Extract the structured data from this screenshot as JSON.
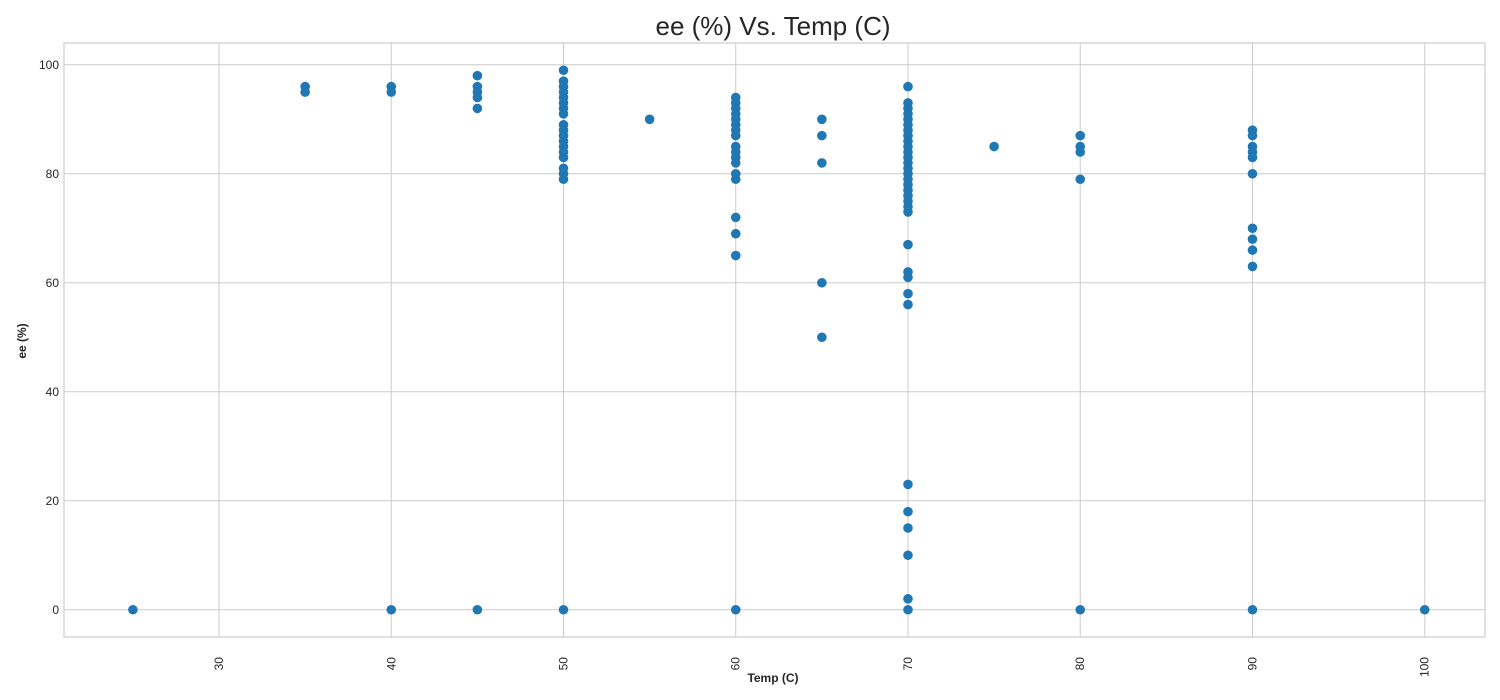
{
  "chart_data": {
    "type": "scatter",
    "title": "ee (%) Vs. Temp (C)",
    "xlabel": "Temp (C)",
    "ylabel": "ee (%)",
    "xlim": [
      21,
      103.5
    ],
    "ylim": [
      -5,
      104
    ],
    "x_ticks": [
      30,
      40,
      50,
      60,
      70,
      80,
      90,
      100
    ],
    "y_ticks": [
      0,
      20,
      40,
      60,
      80,
      100
    ],
    "grid": true,
    "marker_color": "#1f77b4",
    "series": [
      {
        "points": [
          [
            25,
            0
          ],
          [
            35,
            96
          ],
          [
            35,
            95
          ],
          [
            40,
            96
          ],
          [
            40,
            95
          ],
          [
            40,
            0
          ],
          [
            45,
            98
          ],
          [
            45,
            96
          ],
          [
            45,
            95
          ],
          [
            45,
            94
          ],
          [
            45,
            92
          ],
          [
            45,
            0
          ],
          [
            50,
            99
          ],
          [
            50,
            97
          ],
          [
            50,
            96
          ],
          [
            50,
            95
          ],
          [
            50,
            94
          ],
          [
            50,
            93
          ],
          [
            50,
            92
          ],
          [
            50,
            91
          ],
          [
            50,
            89
          ],
          [
            50,
            88
          ],
          [
            50,
            87
          ],
          [
            50,
            86
          ],
          [
            50,
            85
          ],
          [
            50,
            84
          ],
          [
            50,
            83
          ],
          [
            50,
            81
          ],
          [
            50,
            80
          ],
          [
            50,
            79
          ],
          [
            50,
            0
          ],
          [
            55,
            90
          ],
          [
            60,
            94
          ],
          [
            60,
            93
          ],
          [
            60,
            92
          ],
          [
            60,
            91
          ],
          [
            60,
            90
          ],
          [
            60,
            89
          ],
          [
            60,
            88
          ],
          [
            60,
            87
          ],
          [
            60,
            85
          ],
          [
            60,
            84
          ],
          [
            60,
            83
          ],
          [
            60,
            82
          ],
          [
            60,
            80
          ],
          [
            60,
            79
          ],
          [
            60,
            72
          ],
          [
            60,
            69
          ],
          [
            60,
            65
          ],
          [
            60,
            0
          ],
          [
            65,
            90
          ],
          [
            65,
            87
          ],
          [
            65,
            82
          ],
          [
            65,
            60
          ],
          [
            65,
            50
          ],
          [
            70,
            96
          ],
          [
            70,
            93
          ],
          [
            70,
            92
          ],
          [
            70,
            91
          ],
          [
            70,
            90
          ],
          [
            70,
            89
          ],
          [
            70,
            88
          ],
          [
            70,
            87
          ],
          [
            70,
            86
          ],
          [
            70,
            85
          ],
          [
            70,
            84
          ],
          [
            70,
            83
          ],
          [
            70,
            82
          ],
          [
            70,
            81
          ],
          [
            70,
            80
          ],
          [
            70,
            79
          ],
          [
            70,
            78
          ],
          [
            70,
            77
          ],
          [
            70,
            76
          ],
          [
            70,
            75
          ],
          [
            70,
            74
          ],
          [
            70,
            73
          ],
          [
            70,
            67
          ],
          [
            70,
            62
          ],
          [
            70,
            61
          ],
          [
            70,
            58
          ],
          [
            70,
            56
          ],
          [
            70,
            23
          ],
          [
            70,
            18
          ],
          [
            70,
            15
          ],
          [
            70,
            10
          ],
          [
            70,
            2
          ],
          [
            70,
            0
          ],
          [
            75,
            85
          ],
          [
            80,
            87
          ],
          [
            80,
            85
          ],
          [
            80,
            84
          ],
          [
            80,
            79
          ],
          [
            80,
            0
          ],
          [
            90,
            88
          ],
          [
            90,
            87
          ],
          [
            90,
            85
          ],
          [
            90,
            84
          ],
          [
            90,
            83
          ],
          [
            90,
            80
          ],
          [
            90,
            70
          ],
          [
            90,
            68
          ],
          [
            90,
            66
          ],
          [
            90,
            63
          ],
          [
            90,
            0
          ],
          [
            100,
            0
          ]
        ]
      }
    ]
  }
}
